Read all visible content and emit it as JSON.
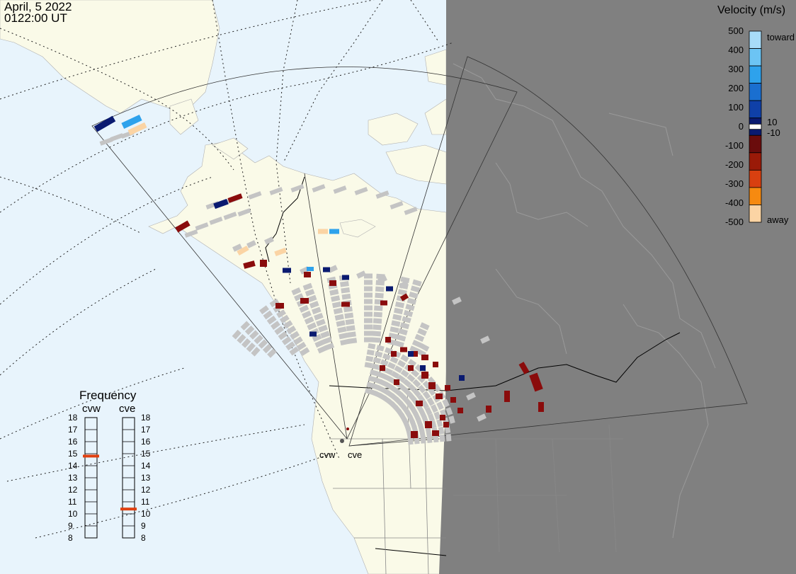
{
  "header": {
    "date": "April, 5 2022",
    "time": "0122:00 UT"
  },
  "velocity_scale": {
    "title": "Velocity (m/s)",
    "ticks": [
      "500",
      "400",
      "300",
      "200",
      "100",
      "0",
      "-100",
      "-200",
      "-300",
      "-400",
      "-500"
    ],
    "toward_label": "toward",
    "away_label": "away",
    "pos_threshold": "10",
    "neg_threshold": "-10",
    "colors": [
      "#a8dcf8",
      "#6cc4f4",
      "#2ea2ec",
      "#1a6fd0",
      "#0f40a8",
      "#0a1a70",
      "#6a0c0c",
      "#9a1a08",
      "#d84010",
      "#f68a10",
      "#fbd4a4"
    ]
  },
  "frequency": {
    "title": "Frequency",
    "radars": [
      {
        "name": "cvw",
        "value": 14.8
      },
      {
        "name": "cve",
        "value": 10.4
      }
    ],
    "ticks": [
      "18",
      "17",
      "16",
      "15",
      "14",
      "13",
      "12",
      "11",
      "10",
      "9",
      "8"
    ],
    "marker_color": "#e04010"
  },
  "radars": [
    {
      "name": "cvw"
    },
    {
      "name": "cve"
    }
  ],
  "colors": {
    "ocean": "#e8f4fc",
    "land": "#fafae8",
    "night": "#808080",
    "ground_scatter": "#c4c4c4"
  }
}
